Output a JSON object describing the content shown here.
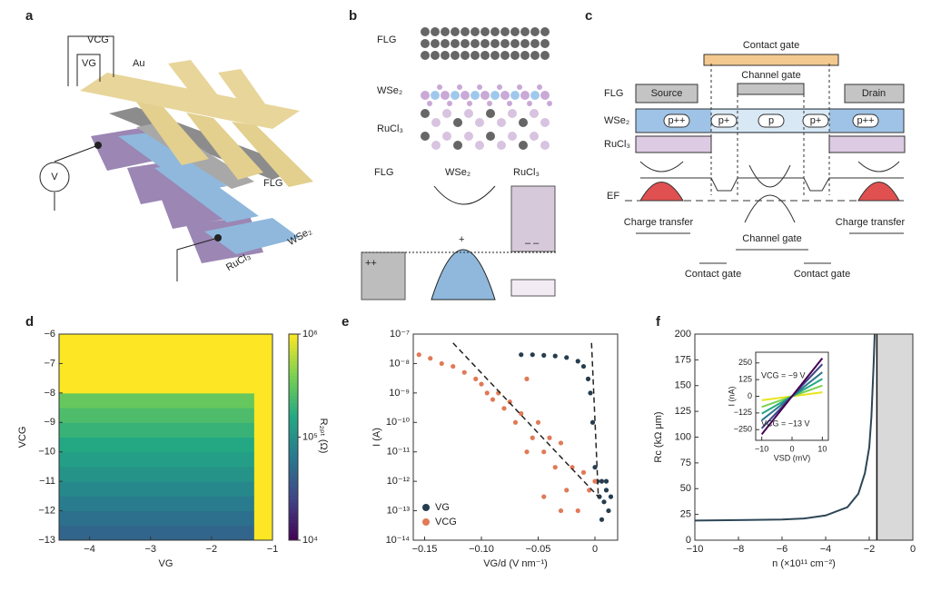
{
  "panels": [
    "a",
    "b",
    "c",
    "d",
    "e",
    "f"
  ],
  "diagram_a": {
    "labels": [
      "VCG",
      "VG",
      "Au",
      "FLG",
      "WSe₂",
      "RuCl₃",
      "V"
    ]
  },
  "diagram_b": {
    "layers": [
      "FLG",
      "WSe₂",
      "RuCl₃"
    ],
    "bands": [
      "FLG",
      "WSe₂",
      "RuCl₃"
    ],
    "charges": [
      "++",
      "+",
      "– –"
    ]
  },
  "diagram_c": {
    "electrodes": [
      "Contact gate",
      "Channel gate",
      "Source",
      "Drain"
    ],
    "layers": [
      "FLG",
      "WSe₂",
      "RuCl₃"
    ],
    "doping": [
      "p++",
      "p+",
      "p",
      "p+",
      "p++"
    ],
    "fermi": "EF",
    "regions": [
      "Charge transfer",
      "Channel gate",
      "Charge transfer",
      "Contact gate",
      "Contact gate"
    ]
  },
  "chart_data": [
    {
      "type": "heatmap",
      "xlabel": "VG",
      "ylabel": "VCG",
      "colormap": "viridis",
      "x_edges": [
        -4.5,
        -1.3,
        -1
      ],
      "y_edges": [
        -13,
        -12.5,
        -12,
        -11.5,
        -11,
        -10.5,
        -10,
        -9.5,
        -9,
        -8.5,
        -8,
        -7.5,
        -7,
        -6.5,
        -6
      ],
      "z": [
        [
          45000,
          1000000
        ],
        [
          55000,
          1000000
        ],
        [
          68000,
          1000000
        ],
        [
          85000,
          1000000
        ],
        [
          105000,
          1000000
        ],
        [
          130000,
          1000000
        ],
        [
          160000,
          1000000
        ],
        [
          200000,
          1000000
        ],
        [
          250000,
          1000000
        ],
        [
          320000,
          1000000
        ],
        [
          1000000,
          1000000
        ],
        [
          1000000,
          1000000
        ],
        [
          1000000,
          1000000
        ],
        [
          1000000,
          1000000
        ]
      ],
      "xlim": [
        -4.5,
        -1
      ],
      "xticks": [
        {
          "value": -4,
          "label": "−4"
        },
        {
          "value": -3,
          "label": "−3"
        },
        {
          "value": -2,
          "label": "−2"
        },
        {
          "value": -1,
          "label": "−1"
        }
      ],
      "ylim": [
        -13,
        -6
      ],
      "yticks": [
        {
          "value": -13,
          "label": "−13"
        },
        {
          "value": -12,
          "label": "−12"
        },
        {
          "value": -11,
          "label": "−11"
        },
        {
          "value": -10,
          "label": "−10"
        },
        {
          "value": -9,
          "label": "−9"
        },
        {
          "value": -8,
          "label": "−8"
        },
        {
          "value": -7,
          "label": "−7"
        },
        {
          "value": -6,
          "label": "−6"
        }
      ],
      "colorbar": {
        "label": "R₂ₚₜ (Ω)",
        "log": true,
        "lim": [
          10000,
          1000000
        ],
        "ticks": [
          {
            "value": 10000,
            "label": "10⁴"
          },
          {
            "value": 100000,
            "label": "10⁵"
          },
          {
            "value": 1000000,
            "label": "10⁶"
          }
        ]
      }
    },
    {
      "type": "scatter",
      "xlabel": "VG/d (V nm⁻¹)",
      "ylabel": "I (A)",
      "ylog": true,
      "legend": "lower left",
      "series": [
        {
          "name": "VG",
          "color": "#263d4f",
          "x": [
            -0.065,
            -0.055,
            -0.045,
            -0.035,
            -0.025,
            -0.015,
            -0.01,
            -0.006,
            -0.004,
            -0.002,
            0,
            0.002,
            0.004,
            0.006,
            0.008,
            0.01,
            0.012,
            0.014,
            0.006,
            0.01
          ],
          "values": [
            2e-08,
            2e-08,
            1.9e-08,
            1.8e-08,
            1.6e-08,
            1.2e-08,
            8e-09,
            3e-09,
            1e-09,
            1e-10,
            3e-12,
            1e-12,
            3e-13,
            1e-12,
            2e-13,
            5e-13,
            1e-13,
            3e-13,
            5e-14,
            1e-12
          ]
        },
        {
          "name": "VCG",
          "color": "#e07a57",
          "x": [
            -0.155,
            -0.145,
            -0.135,
            -0.125,
            -0.115,
            -0.105,
            -0.1,
            -0.095,
            -0.09,
            -0.085,
            -0.08,
            -0.075,
            -0.07,
            -0.065,
            -0.06,
            -0.055,
            -0.05,
            -0.045,
            -0.04,
            -0.035,
            -0.03,
            -0.025,
            -0.02,
            -0.015,
            -0.01,
            -0.005,
            0,
            -0.045,
            -0.03,
            -0.06
          ],
          "values": [
            2e-08,
            1.5e-08,
            1e-08,
            8e-09,
            5e-09,
            3e-09,
            2e-09,
            1e-09,
            6e-10,
            1e-09,
            3e-10,
            5e-10,
            1e-10,
            2e-10,
            3e-09,
            3e-11,
            1e-10,
            1e-11,
            3e-11,
            3e-12,
            2e-11,
            5e-13,
            3e-12,
            1e-13,
            2e-12,
            5e-13,
            1e-12,
            3e-13,
            1e-13,
            1e-11
          ]
        }
      ],
      "fits": [
        {
          "x": [
            -0.125,
            0.003
          ],
          "values": [
            5e-08,
            3e-13
          ]
        },
        {
          "x": [
            -0.003,
            0.003
          ],
          "values": [
            5e-08,
            3e-13
          ]
        }
      ],
      "xlim": [
        -0.16,
        0.02
      ],
      "xticks": [
        {
          "value": -0.15,
          "label": "−0.15"
        },
        {
          "value": -0.1,
          "label": "−0.10"
        },
        {
          "value": -0.05,
          "label": "−0.05"
        },
        0
      ],
      "ylim": [
        1e-14,
        1e-07
      ],
      "yticks": [
        {
          "value": 1e-14,
          "label": "10⁻¹⁴"
        },
        {
          "value": 1e-13,
          "label": "10⁻¹³"
        },
        {
          "value": 1e-12,
          "label": "10⁻¹²"
        },
        {
          "value": 1e-11,
          "label": "10⁻¹¹"
        },
        {
          "value": 1e-10,
          "label": "10⁻¹⁰"
        },
        {
          "value": 1e-09,
          "label": "10⁻⁹"
        },
        {
          "value": 1e-08,
          "label": "10⁻⁸"
        },
        {
          "value": 1e-07,
          "label": "10⁻⁷"
        }
      ]
    },
    {
      "type": "line",
      "xlabel": "n (×10¹¹ cm⁻²)",
      "ylabel": "Rc (kΩ μm)",
      "x": [
        -10,
        -8,
        -6,
        -5,
        -4,
        -3,
        -2.5,
        -2.2,
        -2,
        -1.9,
        -1.8,
        -1.75
      ],
      "series": [
        {
          "color": "#2d4656",
          "values": [
            19,
            19.5,
            20,
            21,
            24,
            32,
            45,
            65,
            90,
            120,
            170,
            200
          ]
        }
      ],
      "shade": [
        -1.65,
        0
      ],
      "xlim": [
        -10,
        0
      ],
      "xticks": [
        {
          "value": -10,
          "label": "−10"
        },
        {
          "value": -8,
          "label": "−8"
        },
        {
          "value": -6,
          "label": "−6"
        },
        {
          "value": -4,
          "label": "−4"
        },
        {
          "value": -2,
          "label": "−2"
        },
        0
      ],
      "ylim": [
        0,
        200
      ],
      "yticks": [
        0,
        25,
        50,
        75,
        100,
        125,
        150,
        175,
        200
      ],
      "inset": {
        "type": "line",
        "xlabel": "VSD (mV)",
        "ylabel": "I (nA)",
        "x": [
          -10,
          10
        ],
        "series": [
          {
            "color": "#e8e419",
            "values": [
              -30,
              30
            ]
          },
          {
            "color": "#7ad151",
            "values": [
              -80,
              80
            ]
          },
          {
            "color": "#22a884",
            "values": [
              -130,
              130
            ]
          },
          {
            "color": "#2a788e",
            "values": [
              -180,
              180
            ]
          },
          {
            "color": "#414487",
            "values": [
              -240,
              240
            ]
          },
          {
            "color": "#440154",
            "values": [
              -285,
              285
            ]
          }
        ],
        "xlim": [
          -12,
          12
        ],
        "xticks": [
          {
            "value": -10,
            "label": "−10"
          },
          0,
          10
        ],
        "ylim": [
          -330,
          330
        ],
        "yticks": [
          {
            "value": -250,
            "label": "−250"
          },
          {
            "value": -125,
            "label": "−125"
          },
          0,
          125,
          250
        ],
        "annotations": [
          "VCG = −9 V",
          "VCG = −13 V"
        ]
      }
    }
  ]
}
